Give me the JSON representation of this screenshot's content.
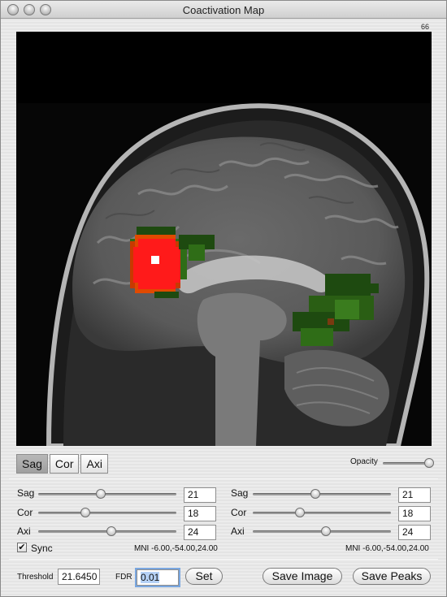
{
  "window": {
    "title": "Coactivation Map"
  },
  "viewer": {
    "slice_number": "66"
  },
  "view_buttons": [
    "Sag",
    "Cor",
    "Axi"
  ],
  "active_view": "Sag",
  "opacity": {
    "label": "Opacity",
    "value": 0.95
  },
  "left_panel": {
    "rows": [
      {
        "label": "Sag",
        "value": "21",
        "level": 0.45
      },
      {
        "label": "Cor",
        "value": "18",
        "level": 0.34
      },
      {
        "label": "Axi",
        "value": "24",
        "level": 0.53
      }
    ],
    "sync_label": "Sync",
    "sync_checked": true,
    "mni": "MNI -6.00,-54.00,24.00"
  },
  "right_panel": {
    "rows": [
      {
        "label": "Sag",
        "value": "21",
        "level": 0.45
      },
      {
        "label": "Cor",
        "value": "18",
        "level": 0.34
      },
      {
        "label": "Axi",
        "value": "24",
        "level": 0.53
      }
    ],
    "mni": "MNI -6.00,-54.00,24.00"
  },
  "threshold": {
    "label": "Threshold",
    "value": "21.6450"
  },
  "fdr": {
    "label": "FDR",
    "value": "0.01"
  },
  "buttons": {
    "set": "Set",
    "save_image": "Save Image",
    "save_peaks": "Save Peaks"
  },
  "colors": {
    "hot": "#ff1a1a",
    "warm": "#c83a00",
    "green_dark": "#1e4a10",
    "green_mid": "#2f6d17"
  }
}
